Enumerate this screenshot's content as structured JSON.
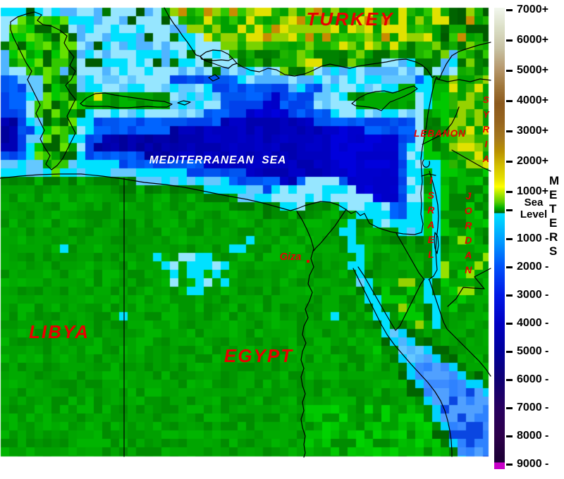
{
  "window": {
    "background": "#FFFFFF"
  },
  "map": {
    "region_labels": {
      "turkey": "TURKEY",
      "libya": "LIBYA",
      "egypt": "EGYPT",
      "lebanon": "LEBANON",
      "syria": "SYRIA",
      "israel": "ISRAEL",
      "jordan": "JORDAN"
    },
    "sea_label": "MEDITERRANEAN  SEA",
    "city_labels": {
      "giza": "Giza"
    },
    "label_color": "#E80000",
    "sea_label_color": "#FFFFFF"
  },
  "legend": {
    "unit": "METERS",
    "ticks_above_sea": [
      "7000+",
      "6000+",
      "5000+",
      "4000+",
      "3000+",
      "2000+",
      "1000+"
    ],
    "sea_level_label": [
      "Sea",
      "Level"
    ],
    "ticks_below_sea": [
      "1000 -",
      "2000 -",
      "3000 -",
      "4000 -",
      "5000 -",
      "6000 -",
      "7000 -",
      "8000 -",
      "9000 -"
    ],
    "gradient_stops": [
      [
        11,
        "#F2F7EE"
      ],
      [
        38,
        "#DCE0C8"
      ],
      [
        68,
        "#C8C3A5"
      ],
      [
        98,
        "#B6976B"
      ],
      [
        122,
        "#A0783C"
      ],
      [
        147,
        "#8C5A1E"
      ],
      [
        172,
        "#96641E"
      ],
      [
        196,
        "#A5781E"
      ],
      [
        215,
        "#B99100"
      ],
      [
        235,
        "#D2BE00"
      ],
      [
        254,
        "#E6E100"
      ],
      [
        265,
        "#FFFF00"
      ],
      [
        276,
        "#A5E600"
      ],
      [
        287,
        "#55CD00"
      ],
      [
        295,
        "#00AF00"
      ],
      [
        301,
        "#007800"
      ],
      [
        302,
        "#005000"
      ],
      [
        303,
        "#00E1FF"
      ],
      [
        320,
        "#00C3FF"
      ],
      [
        345,
        "#0096FF"
      ],
      [
        379,
        "#0050FA"
      ],
      [
        419,
        "#0019E6"
      ],
      [
        459,
        "#0000C3"
      ],
      [
        499,
        "#00009B"
      ],
      [
        539,
        "#0F0073"
      ],
      [
        579,
        "#28005F"
      ],
      [
        619,
        "#2D004B"
      ],
      [
        649,
        "#1E0037"
      ],
      [
        656,
        "#1E0037"
      ],
      [
        657,
        "#C800C8"
      ],
      [
        666,
        "#C800C8"
      ]
    ]
  },
  "palette": {
    "deep_sea": "#0000AA",
    "sea": "#0000CD",
    "sea_mid": "#0032E1",
    "sea_light": "#0064FF",
    "shallow": "#00E1FF",
    "pale_shallow": "#96E6FF",
    "land": "#00A000",
    "land_dark": "#007800",
    "land_bright": "#00C800",
    "land_pale": "#96D200",
    "yellow": "#E1E100",
    "orange": "#C88C00",
    "dark_green": "#005A00",
    "coastline": "#000000",
    "magenta": "#C800C8"
  }
}
